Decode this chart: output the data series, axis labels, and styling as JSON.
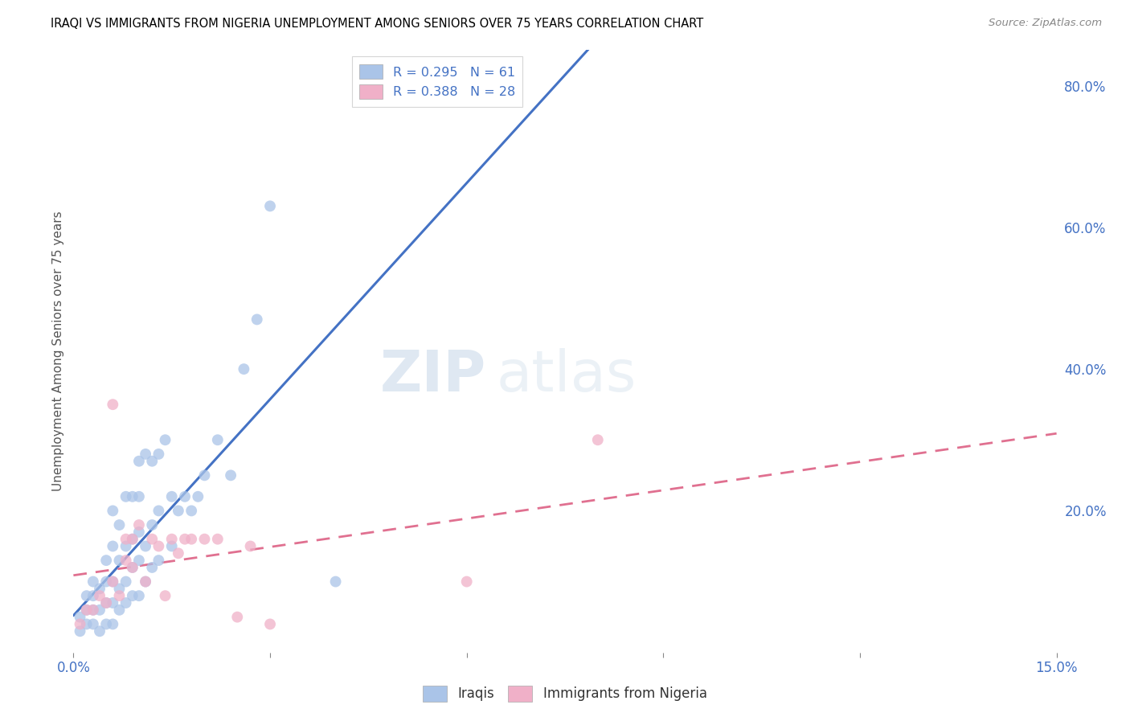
{
  "title": "IRAQI VS IMMIGRANTS FROM NIGERIA UNEMPLOYMENT AMONG SENIORS OVER 75 YEARS CORRELATION CHART",
  "source": "Source: ZipAtlas.com",
  "ylabel": "Unemployment Among Seniors over 75 years",
  "xlim": [
    0.0,
    0.15
  ],
  "ylim": [
    0.0,
    0.85
  ],
  "legend_items": [
    {
      "label": "R = 0.295   N = 61",
      "color": "#aec6f0"
    },
    {
      "label": "R = 0.388   N = 28",
      "color": "#f0aec6"
    }
  ],
  "iraqis_x": [
    0.001,
    0.001,
    0.002,
    0.002,
    0.002,
    0.003,
    0.003,
    0.003,
    0.003,
    0.004,
    0.004,
    0.004,
    0.005,
    0.005,
    0.005,
    0.005,
    0.006,
    0.006,
    0.006,
    0.006,
    0.006,
    0.007,
    0.007,
    0.007,
    0.007,
    0.008,
    0.008,
    0.008,
    0.008,
    0.009,
    0.009,
    0.009,
    0.009,
    0.01,
    0.01,
    0.01,
    0.01,
    0.01,
    0.011,
    0.011,
    0.011,
    0.012,
    0.012,
    0.012,
    0.013,
    0.013,
    0.013,
    0.014,
    0.015,
    0.015,
    0.016,
    0.017,
    0.018,
    0.019,
    0.02,
    0.022,
    0.024,
    0.026,
    0.028,
    0.03,
    0.04
  ],
  "iraqis_y": [
    0.03,
    0.05,
    0.04,
    0.06,
    0.08,
    0.04,
    0.06,
    0.08,
    0.1,
    0.03,
    0.06,
    0.09,
    0.04,
    0.07,
    0.1,
    0.13,
    0.04,
    0.07,
    0.1,
    0.15,
    0.2,
    0.06,
    0.09,
    0.13,
    0.18,
    0.07,
    0.1,
    0.15,
    0.22,
    0.08,
    0.12,
    0.16,
    0.22,
    0.08,
    0.13,
    0.17,
    0.22,
    0.27,
    0.1,
    0.15,
    0.28,
    0.12,
    0.18,
    0.27,
    0.13,
    0.2,
    0.28,
    0.3,
    0.15,
    0.22,
    0.2,
    0.22,
    0.2,
    0.22,
    0.25,
    0.3,
    0.25,
    0.4,
    0.47,
    0.63,
    0.1
  ],
  "nigeria_x": [
    0.001,
    0.002,
    0.003,
    0.004,
    0.005,
    0.006,
    0.006,
    0.007,
    0.008,
    0.008,
    0.009,
    0.009,
    0.01,
    0.011,
    0.012,
    0.013,
    0.014,
    0.015,
    0.016,
    0.017,
    0.018,
    0.02,
    0.022,
    0.025,
    0.027,
    0.03,
    0.06,
    0.08
  ],
  "nigeria_y": [
    0.04,
    0.06,
    0.06,
    0.08,
    0.07,
    0.1,
    0.35,
    0.08,
    0.13,
    0.16,
    0.12,
    0.16,
    0.18,
    0.1,
    0.16,
    0.15,
    0.08,
    0.16,
    0.14,
    0.16,
    0.16,
    0.16,
    0.16,
    0.05,
    0.15,
    0.04,
    0.1,
    0.3
  ],
  "iraqis_color": "#aac4e8",
  "iraqis_edge": "#aac4e8",
  "nigeria_color": "#f0b0c8",
  "nigeria_edge": "#f0b0c8",
  "trend_iraq_color": "#4472c4",
  "trend_nigeria_color": "#e07090",
  "trend_nigeria_style": "--",
  "watermark_zip": "ZIP",
  "watermark_atlas": "atlas",
  "background_color": "#ffffff",
  "grid_color": "#cccccc"
}
